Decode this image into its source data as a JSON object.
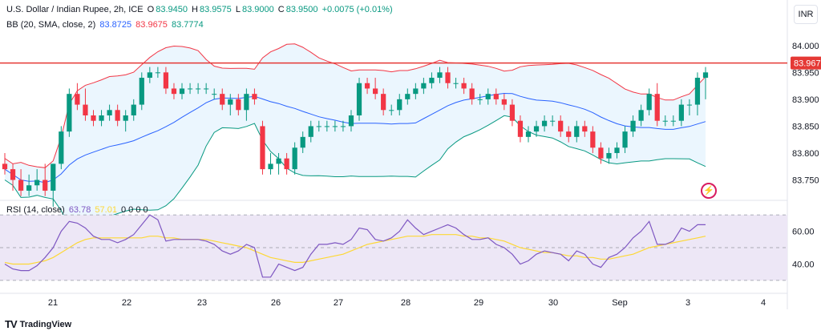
{
  "header": {
    "symbol": "U.S. Dollar / Indian Rupee, 2h, ICE",
    "o_label": "O",
    "o": "83.9450",
    "h_label": "H",
    "h": "83.9575",
    "l_label": "L",
    "l": "83.9000",
    "c_label": "C",
    "c": "83.9500",
    "change": "+0.0075 (+0.01%)",
    "bb_label": "BB (20, SMA, close, 2)",
    "bb_mid": "83.8725",
    "bb_upper": "83.9675",
    "bb_lower": "83.7774",
    "rsi_label": "RSI (14, close)",
    "rsi_value": "63.78",
    "rsi_ma": "57.01",
    "rsi_extra": "0 0 0 0"
  },
  "currency": "INR",
  "brand": "TradingView",
  "colors": {
    "up": "#089981",
    "down": "#f23645",
    "bb_mid": "#2962ff",
    "bb_upper": "#f23645",
    "bb_lower": "#089981",
    "hline": "#e53935",
    "rsi": "#7e57c2",
    "rsi_ma": "#fdd835",
    "bb_fill": "#e3f2fd",
    "rsi_fill": "#ede7f6"
  },
  "chart_data": {
    "type": "candlestick",
    "price_ticks": [
      "84.000",
      "83.950",
      "83.900",
      "83.850",
      "83.800",
      "83.750"
    ],
    "price_range": [
      83.715,
      84.025
    ],
    "hline_value": 83.9675,
    "hline_label": "83.967",
    "rsi_ticks": [
      "60.00",
      "40.00"
    ],
    "rsi_range": [
      28,
      73
    ],
    "rsi_band": [
      30,
      70
    ],
    "x_labels": [
      "21",
      "22",
      "23",
      "26",
      "27",
      "28",
      "29",
      "30",
      "Sep",
      "3",
      "4"
    ],
    "candles": [
      [
        83.78,
        83.8,
        83.76,
        83.77
      ],
      [
        83.77,
        83.78,
        83.73,
        83.75
      ],
      [
        83.75,
        83.77,
        83.72,
        83.73
      ],
      [
        83.73,
        83.76,
        83.72,
        83.74
      ],
      [
        83.74,
        83.77,
        83.73,
        83.75
      ],
      [
        83.75,
        83.78,
        83.72,
        83.73
      ],
      [
        83.73,
        83.78,
        83.7,
        83.78
      ],
      [
        83.78,
        83.85,
        83.77,
        83.84
      ],
      [
        83.84,
        83.92,
        83.83,
        83.91
      ],
      [
        83.91,
        83.93,
        83.88,
        83.89
      ],
      [
        83.89,
        83.92,
        83.86,
        83.87
      ],
      [
        83.87,
        83.88,
        83.85,
        83.86
      ],
      [
        83.86,
        83.88,
        83.85,
        83.87
      ],
      [
        83.87,
        83.89,
        83.86,
        83.88
      ],
      [
        83.88,
        83.89,
        83.85,
        83.86
      ],
      [
        83.86,
        83.88,
        83.84,
        83.87
      ],
      [
        83.87,
        83.9,
        83.86,
        83.89
      ],
      [
        83.89,
        83.95,
        83.88,
        83.94
      ],
      [
        83.94,
        83.96,
        83.93,
        83.95
      ],
      [
        83.95,
        83.96,
        83.94,
        83.95
      ],
      [
        83.95,
        83.96,
        83.91,
        83.92
      ],
      [
        83.92,
        83.93,
        83.9,
        83.91
      ],
      [
        83.91,
        83.93,
        83.9,
        83.92
      ],
      [
        83.92,
        83.93,
        83.91,
        83.92
      ],
      [
        83.92,
        83.93,
        83.91,
        83.92
      ],
      [
        83.92,
        83.93,
        83.91,
        83.92
      ],
      [
        83.91,
        83.92,
        83.9,
        83.91
      ],
      [
        83.91,
        83.92,
        83.88,
        83.89
      ],
      [
        83.89,
        83.91,
        83.87,
        83.9
      ],
      [
        83.9,
        83.91,
        83.87,
        83.88
      ],
      [
        83.88,
        83.92,
        83.86,
        83.91
      ],
      [
        83.91,
        83.92,
        83.89,
        83.9
      ],
      [
        83.85,
        83.86,
        83.76,
        83.77
      ],
      [
        83.77,
        83.8,
        83.76,
        83.78
      ],
      [
        83.78,
        83.8,
        83.76,
        83.79
      ],
      [
        83.79,
        83.8,
        83.76,
        83.77
      ],
      [
        83.77,
        83.82,
        83.76,
        83.81
      ],
      [
        83.81,
        83.84,
        83.8,
        83.83
      ],
      [
        83.83,
        83.86,
        83.82,
        83.85
      ],
      [
        83.85,
        83.86,
        83.84,
        83.85
      ],
      [
        83.85,
        83.86,
        83.84,
        83.85
      ],
      [
        83.85,
        83.86,
        83.84,
        83.85
      ],
      [
        83.85,
        83.86,
        83.84,
        83.85
      ],
      [
        83.85,
        83.88,
        83.84,
        83.87
      ],
      [
        83.87,
        83.94,
        83.86,
        83.93
      ],
      [
        83.93,
        83.94,
        83.91,
        83.92
      ],
      [
        83.92,
        83.94,
        83.9,
        83.91
      ],
      [
        83.91,
        83.92,
        83.87,
        83.88
      ],
      [
        83.88,
        83.89,
        83.87,
        83.88
      ],
      [
        83.88,
        83.91,
        83.87,
        83.9
      ],
      [
        83.9,
        83.92,
        83.89,
        83.91
      ],
      [
        83.91,
        83.93,
        83.9,
        83.92
      ],
      [
        83.92,
        83.94,
        83.91,
        83.93
      ],
      [
        83.93,
        83.95,
        83.92,
        83.94
      ],
      [
        83.94,
        83.96,
        83.93,
        83.95
      ],
      [
        83.95,
        83.96,
        83.92,
        83.93
      ],
      [
        83.93,
        83.94,
        83.92,
        83.93
      ],
      [
        83.93,
        83.94,
        83.91,
        83.92
      ],
      [
        83.92,
        83.93,
        83.89,
        83.9
      ],
      [
        83.9,
        83.91,
        83.89,
        83.9
      ],
      [
        83.9,
        83.92,
        83.89,
        83.91
      ],
      [
        83.91,
        83.92,
        83.89,
        83.9
      ],
      [
        83.9,
        83.91,
        83.88,
        83.89
      ],
      [
        83.89,
        83.9,
        83.85,
        83.86
      ],
      [
        83.86,
        83.87,
        83.82,
        83.83
      ],
      [
        83.83,
        83.85,
        83.82,
        83.84
      ],
      [
        83.84,
        83.86,
        83.83,
        83.85
      ],
      [
        83.85,
        83.87,
        83.84,
        83.86
      ],
      [
        83.86,
        83.87,
        83.85,
        83.86
      ],
      [
        83.86,
        83.87,
        83.83,
        83.84
      ],
      [
        83.84,
        83.85,
        83.82,
        83.83
      ],
      [
        83.83,
        83.86,
        83.82,
        83.85
      ],
      [
        83.85,
        83.86,
        83.83,
        83.84
      ],
      [
        83.84,
        83.85,
        83.8,
        83.81
      ],
      [
        83.81,
        83.82,
        83.78,
        83.79
      ],
      [
        83.79,
        83.81,
        83.78,
        83.8
      ],
      [
        83.8,
        83.82,
        83.79,
        83.81
      ],
      [
        83.81,
        83.85,
        83.8,
        83.84
      ],
      [
        83.84,
        83.87,
        83.83,
        83.86
      ],
      [
        83.86,
        83.89,
        83.85,
        83.88
      ],
      [
        83.88,
        83.92,
        83.87,
        83.91
      ],
      [
        83.91,
        83.93,
        83.85,
        83.86
      ],
      [
        83.86,
        83.87,
        83.85,
        83.86
      ],
      [
        83.86,
        83.87,
        83.85,
        83.86
      ],
      [
        83.86,
        83.9,
        83.85,
        83.89
      ],
      [
        83.89,
        83.9,
        83.87,
        83.89
      ],
      [
        83.89,
        83.95,
        83.87,
        83.94
      ],
      [
        83.94,
        83.96,
        83.9,
        83.95
      ]
    ],
    "rsi": [
      40,
      37,
      36,
      36,
      39,
      44,
      50,
      60,
      66,
      65,
      62,
      57,
      55,
      55,
      53,
      55,
      58,
      64,
      70,
      67,
      54,
      55,
      55,
      55,
      55,
      54,
      52,
      48,
      46,
      48,
      52,
      50,
      32,
      32,
      40,
      38,
      36,
      38,
      46,
      52,
      52,
      53,
      52,
      55,
      62,
      61,
      55,
      54,
      56,
      60,
      67,
      62,
      58,
      60,
      62,
      64,
      62,
      58,
      55,
      55,
      56,
      52,
      50,
      46,
      40,
      42,
      46,
      48,
      47,
      46,
      42,
      48,
      46,
      40,
      38,
      44,
      46,
      50,
      56,
      60,
      66,
      52,
      52,
      54,
      62,
      60,
      64,
      64
    ],
    "rsi_ma": [
      41,
      40,
      40,
      40,
      41,
      42,
      44,
      47,
      50,
      53,
      55,
      56,
      56,
      56,
      56,
      56,
      56,
      56,
      57,
      57,
      56,
      56,
      55,
      55,
      55,
      55,
      54,
      53,
      52,
      51,
      50,
      48,
      46,
      44,
      43,
      42,
      41,
      41,
      42,
      43,
      44,
      45,
      46,
      48,
      50,
      52,
      53,
      54,
      55,
      56,
      57,
      57,
      57,
      58,
      58,
      58,
      58,
      57,
      57,
      56,
      56,
      55,
      54,
      52,
      50,
      49,
      48,
      47,
      47,
      46,
      45,
      45,
      44,
      44,
      43,
      43,
      44,
      45,
      46,
      48,
      50,
      51,
      52,
      53,
      54,
      55,
      56,
      57
    ]
  }
}
